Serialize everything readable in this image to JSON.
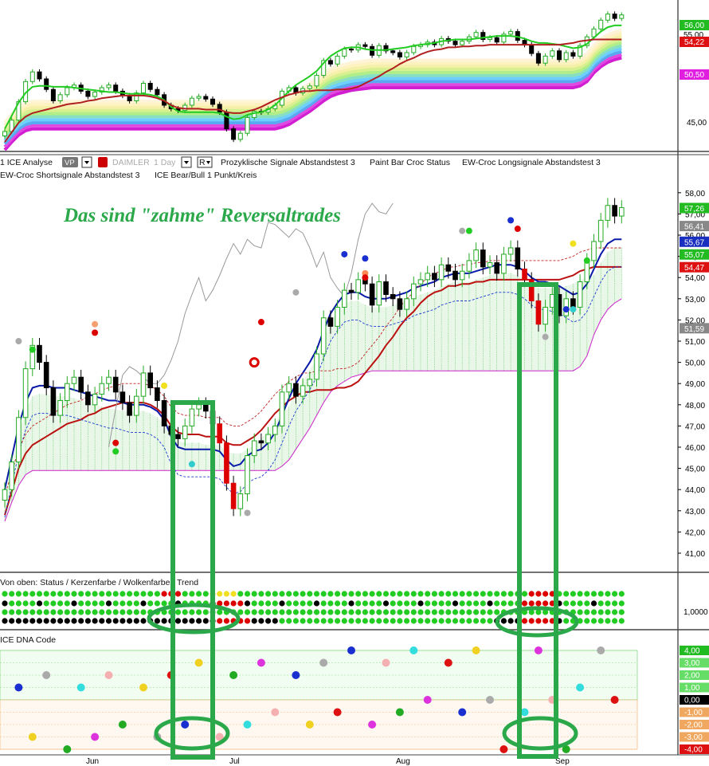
{
  "colors": {
    "bull": "#22cc22",
    "bear": "#dd0000",
    "kijun": "#0a1aa8",
    "tenkan": "#bb1111",
    "cloud": "#6ec96e",
    "annotate": "#2aa84a",
    "gray": "#888888",
    "lc_blue": "#1536c9",
    "lc_green": "#1aa81a",
    "lc_red": "#cc1c1c",
    "lc_gray": "#8a8a8a",
    "lc_black": "#000000"
  },
  "toolbar": {
    "line1_prefix": "1 ICE Analyse",
    "vp_badge": "VP",
    "symbol": "DAIMLER",
    "timeframe": "1 Day",
    "r_button": "R",
    "indicators_line1": [
      "Prozyklische Signale Abstandstest 3",
      "Paint Bar Croc Status",
      "EW-Croc Longsignale Abstandstest 3"
    ],
    "indicators_line2": [
      "EW-Croc Shortsignale Abstandstest 3",
      "ICE Bear/Bull 1 Punkt/Kreis"
    ]
  },
  "annotation": {
    "headline": "Das sind \"zahme\" Reversaltrades"
  },
  "panel_labels": {
    "status": "Von oben: Status / Kerzenfarbe / Wolkenfarbe / Trend",
    "dna": "ICE DNA Code"
  },
  "top_panel": {
    "ticks": [
      "45,00",
      "55,00"
    ],
    "value_labels": [
      {
        "text": "56,00",
        "color": "#22bb22"
      },
      {
        "text": "54,22",
        "color": "#dd1111"
      },
      {
        "text": "50,50",
        "color": "#e01ee0"
      }
    ]
  },
  "main_panel": {
    "ticks": [
      "41,00",
      "42,00",
      "43,00",
      "44,00",
      "45,00",
      "46,00",
      "47,00",
      "48,00",
      "49,00",
      "50,00",
      "51,00",
      "52,00",
      "53,00",
      "54,00",
      "55,00",
      "56,00",
      "57,00",
      "58,00"
    ],
    "value_labels": [
      {
        "text": "57,26",
        "color": "#22bb22"
      },
      {
        "text": "56,41",
        "color": "#888888"
      },
      {
        "text": "55,67",
        "color": "#1a2fc0"
      },
      {
        "text": "55,07",
        "color": "#22bb22"
      },
      {
        "text": "54,47",
        "color": "#dd1111"
      },
      {
        "text": "51,59",
        "color": "#888888"
      }
    ]
  },
  "status_panel": {
    "tick": "1,0000"
  },
  "dna_panel": {
    "value_labels": [
      {
        "text": "4,00",
        "color": "#22bb22"
      },
      {
        "text": "3,00",
        "color": "#66dd66"
      },
      {
        "text": "2,00",
        "color": "#66dd66"
      },
      {
        "text": "1,00",
        "color": "#66dd66"
      },
      {
        "text": "0,00",
        "color": "#000000"
      },
      {
        "text": "-1,00",
        "color": "#f0a860"
      },
      {
        "text": "-2,00",
        "color": "#f0a860"
      },
      {
        "text": "-3,00",
        "color": "#f0a860"
      },
      {
        "text": "-4,00",
        "color": "#dd1111"
      }
    ]
  },
  "x_axis": {
    "labels": [
      "Jun",
      "Jul",
      "Aug",
      "Sep"
    ]
  },
  "chart_data": {
    "type": "line",
    "instrument": "DAIMLER",
    "timeframe": "1 Day",
    "x_labels": [
      "Jun",
      "Jul",
      "Aug",
      "Sep"
    ],
    "ylim": [
      40.5,
      58.5
    ],
    "close": [
      44.0,
      45.3,
      47.4,
      49.7,
      50.8,
      50.0,
      48.8,
      47.5,
      48.2,
      49.0,
      49.3,
      48.6,
      48.0,
      48.5,
      49.0,
      49.3,
      48.6,
      48.1,
      47.5,
      48.4,
      49.5,
      48.8,
      48.2,
      47.0,
      46.6,
      46.4,
      47.0,
      47.8,
      48.0,
      47.7,
      47.1,
      46.2,
      44.3,
      43.1,
      43.8,
      45.6,
      46.3,
      46.2,
      46.6,
      47.0,
      48.6,
      49.0,
      48.4,
      48.9,
      49.2,
      50.4,
      52.1,
      51.7,
      52.6,
      53.4,
      53.3,
      53.9,
      53.7,
      52.7,
      53.8,
      53.2,
      53.0,
      52.5,
      53.0,
      53.7,
      53.9,
      54.2,
      53.9,
      54.6,
      54.3,
      53.9,
      54.3,
      54.8,
      55.3,
      54.5,
      54.7,
      54.2,
      55.1,
      55.4,
      54.4,
      53.9,
      52.9,
      51.8,
      52.6,
      53.2,
      52.2,
      53.0,
      52.6,
      53.8,
      54.8,
      55.7,
      56.7,
      57.4,
      56.9,
      57.3
    ],
    "kijun_blue": [
      44.0,
      45.5,
      47.0,
      48.1,
      48.8,
      48.9,
      48.9,
      48.8,
      48.8,
      48.8,
      48.7,
      48.6,
      48.5,
      48.4,
      48.3,
      48.2,
      48.2,
      48.1,
      48.0,
      48.0,
      48.0,
      47.9,
      47.7,
      47.3,
      46.5,
      46.0,
      45.9,
      45.9,
      45.9,
      45.9,
      45.9,
      45.8,
      45.4,
      45.1,
      45.2,
      45.6,
      45.8,
      45.9,
      46.2,
      46.7,
      47.5,
      48.3,
      49.0,
      49.5,
      50.0,
      50.6,
      51.5,
      52.3,
      52.8,
      53.2,
      53.3,
      53.3,
      53.1,
      53.0,
      53.0,
      53.0,
      53.1,
      53.2,
      53.3,
      53.5,
      53.6,
      53.7,
      53.8,
      54.0,
      54.1,
      54.2,
      54.2,
      54.2,
      54.3,
      54.4,
      54.5,
      54.6,
      54.6,
      54.6,
      54.5,
      54.3,
      54.0,
      53.8,
      53.8,
      53.7,
      53.6,
      53.4,
      53.2,
      53.3,
      53.7,
      54.4,
      55.1,
      55.6,
      55.8,
      55.8
    ],
    "tenkan_red": [
      42.8,
      43.9,
      45.0,
      45.7,
      46.1,
      46.3,
      46.5,
      46.7,
      46.9,
      47.1,
      47.2,
      47.3,
      47.5,
      47.6,
      47.8,
      47.9,
      48.0,
      48.1,
      48.1,
      48.1,
      48.1,
      48.0,
      47.8,
      47.5,
      47.0,
      46.7,
      46.6,
      46.6,
      46.6,
      46.5,
      46.5,
      46.5,
      46.2,
      46.1,
      46.1,
      46.3,
      46.5,
      46.8,
      47.2,
      47.6,
      47.9,
      48.2,
      48.4,
      48.6,
      48.6,
      48.7,
      48.7,
      48.7,
      48.8,
      48.8,
      48.9,
      49.1,
      49.5,
      49.9,
      50.3,
      50.8,
      51.2,
      51.7,
      52.1,
      52.4,
      52.8,
      53.1,
      53.3,
      53.4,
      53.6,
      53.6,
      53.7,
      53.7,
      53.8,
      53.8,
      53.9,
      53.9,
      53.9,
      53.9,
      53.9,
      53.9,
      53.9,
      53.9,
      53.9,
      53.9,
      53.9,
      54.0,
      54.1,
      54.3,
      54.4,
      54.5,
      54.5,
      54.5,
      54.5,
      54.5
    ],
    "cloud_lower_magenta": [
      42.5,
      43.4,
      44.2,
      44.7,
      44.9,
      44.9,
      44.9,
      44.9,
      44.9,
      44.9,
      44.9,
      44.9,
      44.9,
      44.9,
      44.9,
      44.9,
      44.9,
      44.9,
      44.9,
      44.9,
      44.9,
      44.9,
      44.9,
      44.9,
      44.9,
      44.9,
      44.9,
      44.9,
      44.9,
      44.9,
      44.9,
      44.9,
      44.9,
      44.9,
      44.9,
      44.9,
      44.9,
      44.9,
      44.9,
      44.9,
      45.1,
      45.4,
      45.9,
      46.4,
      46.9,
      47.5,
      48.1,
      48.6,
      48.9,
      49.1,
      49.3,
      49.4,
      49.5,
      49.6,
      49.6,
      49.6,
      49.6,
      49.6,
      49.6,
      49.6,
      49.6,
      49.6,
      49.6,
      49.6,
      49.6,
      49.6,
      49.6,
      49.6,
      49.6,
      49.6,
      49.6,
      49.6,
      49.6,
      49.6,
      49.6,
      49.6,
      49.6,
      49.6,
      49.6,
      49.6,
      49.6,
      49.6,
      49.6,
      49.8,
      50.3,
      51.3,
      52.0,
      52.5,
      52.8,
      53.0
    ],
    "lagging_gray": [
      46.0,
      47.8,
      49.4,
      49.8,
      49.6,
      49.3,
      49.0,
      49.0,
      49.4,
      50.1,
      51.0,
      52.3,
      53.2,
      54.0,
      52.9,
      53.4,
      54.1,
      54.9,
      55.6,
      55.1,
      55.8,
      55.5,
      55.4,
      56.6,
      56.5,
      56.2,
      55.9,
      56.3,
      56.1,
      55.4,
      54.5,
      55.2,
      54.0,
      53.5,
      53.1,
      54.2,
      55.8,
      57.0,
      57.5,
      57.1,
      57.0,
      57.5
    ]
  }
}
